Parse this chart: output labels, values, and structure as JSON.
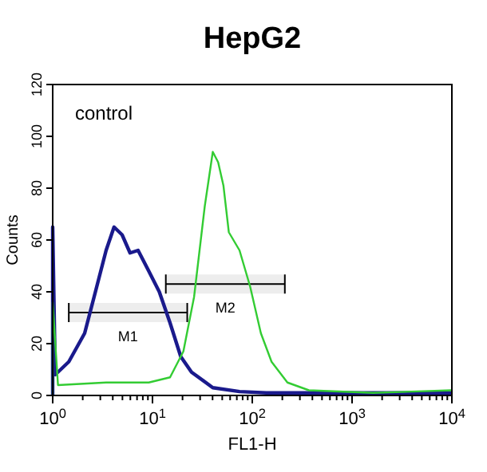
{
  "chart_data": {
    "type": "line",
    "title": "HepG2",
    "xlabel": "FL1-H",
    "ylabel": "Counts",
    "log": "x",
    "grid": false,
    "line_style": "solid",
    "xlim": [
      1,
      10000
    ],
    "ylim": [
      0,
      120
    ],
    "xticks": [
      {
        "value": 1,
        "label": "10$^{0}$"
      },
      {
        "value": 2,
        "label": null
      },
      {
        "value": 3,
        "label": null
      },
      {
        "value": 4,
        "label": null
      },
      {
        "value": 5,
        "label": null
      },
      {
        "value": 6,
        "label": null
      },
      {
        "value": 7,
        "label": null
      },
      {
        "value": 8,
        "label": null
      },
      {
        "value": 9,
        "label": null
      },
      {
        "value": 10,
        "label": "10$^{1}$"
      },
      {
        "value": 20,
        "label": null
      },
      {
        "value": 30,
        "label": null
      },
      {
        "value": 40,
        "label": null
      },
      {
        "value": 50,
        "label": null
      },
      {
        "value": 60,
        "label": null
      },
      {
        "value": 70,
        "label": null
      },
      {
        "value": 80,
        "label": null
      },
      {
        "value": 90,
        "label": null
      },
      {
        "value": 100,
        "label": "10$^{2}$"
      },
      {
        "value": 200,
        "label": null
      },
      {
        "value": 300,
        "label": null
      },
      {
        "value": 400,
        "label": null
      },
      {
        "value": 500,
        "label": null
      },
      {
        "value": 600,
        "label": null
      },
      {
        "value": 700,
        "label": null
      },
      {
        "value": 800,
        "label": null
      },
      {
        "value": 900,
        "label": null
      },
      {
        "value": 1000,
        "label": "10$^{3}$"
      },
      {
        "value": 2000,
        "label": null
      },
      {
        "value": 3000,
        "label": null
      },
      {
        "value": 4000,
        "label": null
      },
      {
        "value": 5000,
        "label": null
      },
      {
        "value": 6000,
        "label": null
      },
      {
        "value": 7000,
        "label": null
      },
      {
        "value": 8000,
        "label": null
      },
      {
        "value": 9000,
        "label": null
      },
      {
        "value": 10000,
        "label": "10$^{4}$"
      }
    ],
    "yticks": [
      0,
      20,
      40,
      60,
      80,
      100,
      120
    ],
    "annotations": [
      "control"
    ],
    "bands": [
      {
        "axis": "x",
        "from": 1.45,
        "to": 22.3,
        "label": "M1",
        "color": "#000000"
      },
      {
        "axis": "x",
        "from": 13.6,
        "to": 212,
        "label": "M2",
        "color": "#000000"
      }
    ],
    "series": [
      {
        "color": "#1a1a8c",
        "x": [
          1,
          1,
          1.06,
          1.45,
          2.09,
          2.68,
          3.43,
          4.12,
          4.96,
          5.96,
          7.17,
          9.18,
          11.7,
          15,
          19.2,
          24.6,
          40.2,
          74.5,
          138,
          472,
          1620,
          10000
        ],
        "values": [
          0,
          65,
          8,
          13,
          24,
          40,
          56,
          65,
          62,
          55,
          56,
          48,
          40,
          28,
          15,
          9,
          3,
          1.5,
          1,
          1,
          1,
          1
        ]
      },
      {
        "color": "#33cc33",
        "x": [
          1,
          1,
          1.13,
          3.43,
          9.18,
          15,
          20.4,
          26.1,
          33.4,
          40.2,
          45.5,
          51.4,
          58.2,
          74.5,
          95.2,
          122,
          156,
          225,
          369,
          1620,
          10000
        ],
        "values": [
          0,
          36,
          4,
          5,
          5,
          7,
          17,
          38,
          73,
          94,
          90,
          81,
          63,
          56,
          42,
          24,
          13,
          5,
          2,
          1,
          2
        ]
      }
    ]
  }
}
